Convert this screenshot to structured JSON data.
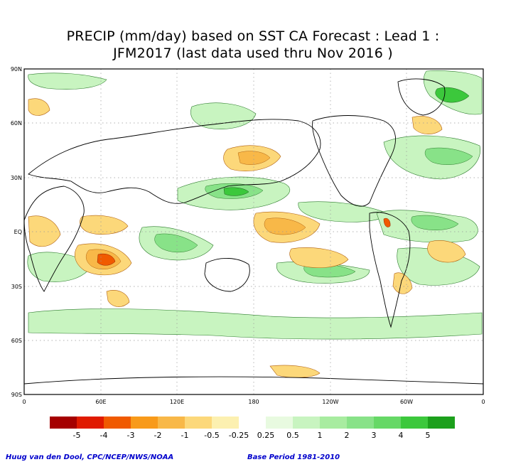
{
  "title_line1": "PRECIP (mm/day) based on SST CA Forecast : Lead 1 :",
  "title_line2": "JFM2017 (last data used thru Nov 2016 )",
  "lat_labels": [
    "90N",
    "60N",
    "30N",
    "EQ",
    "30S",
    "60S",
    "90S"
  ],
  "lon_labels": [
    "0",
    "60E",
    "120E",
    "180",
    "120W",
    "60W",
    "0"
  ],
  "colorbar": {
    "labels": [
      "-5",
      "-4",
      "-3",
      "-2",
      "-1",
      "-0.5",
      "-0.25",
      "0.25",
      "0.5",
      "1",
      "2",
      "3",
      "4",
      "5"
    ],
    "colors": [
      "#a50000",
      "#e01a00",
      "#f05a00",
      "#f89a1a",
      "#f8b848",
      "#fcd87a",
      "#fcf0b0",
      "#ffffff",
      "#e8fae0",
      "#c8f4c0",
      "#a8eca0",
      "#88e288",
      "#66d866",
      "#3cc83c",
      "#1ca01c"
    ]
  },
  "credit": "Huug van den Dool, CPC/NCEP/NWS/NOAA",
  "base_period": "Base Period 1981-2010"
}
